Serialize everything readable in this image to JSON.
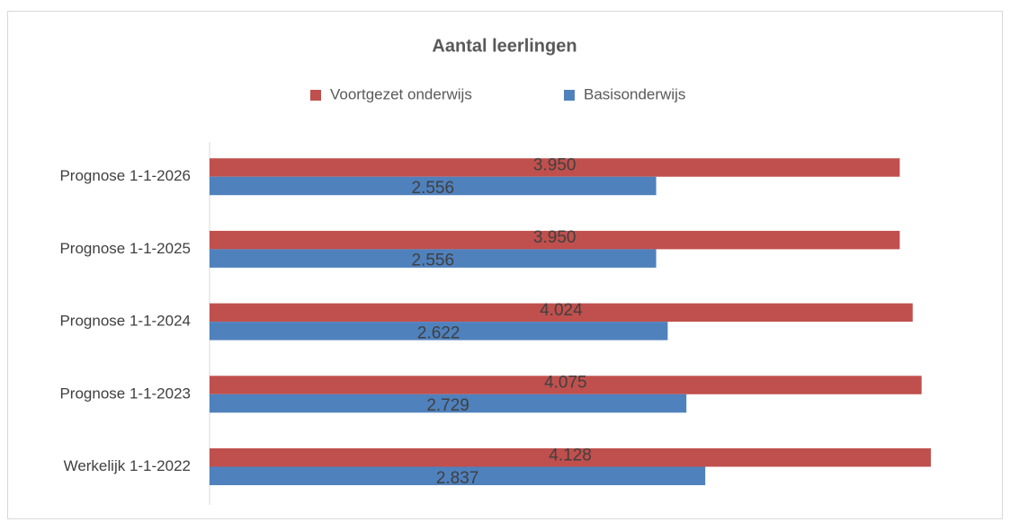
{
  "chart_data": {
    "type": "bar",
    "orientation": "horizontal",
    "title": "Aantal leerlingen",
    "categories": [
      "Werkelijk 1-1-2022",
      "Prognose 1-1-2023",
      "Prognose 1-1-2024",
      "Prognose 1-1-2025",
      "Prognose 1-1-2026"
    ],
    "series": [
      {
        "name": "Voortgezet onderwijs",
        "color": "#c0504d",
        "values": [
          4128,
          4075,
          4024,
          3950,
          3950
        ],
        "value_labels": [
          "4.128",
          "4.075",
          "4.024",
          "3.950",
          "3.950"
        ]
      },
      {
        "name": "Basisonderwijs",
        "color": "#4f81bd",
        "values": [
          2837,
          2729,
          2622,
          2556,
          2556
        ],
        "value_labels": [
          "2.837",
          "2.729",
          "2.622",
          "2.556",
          "2.556"
        ]
      }
    ],
    "legend": "top"
  }
}
